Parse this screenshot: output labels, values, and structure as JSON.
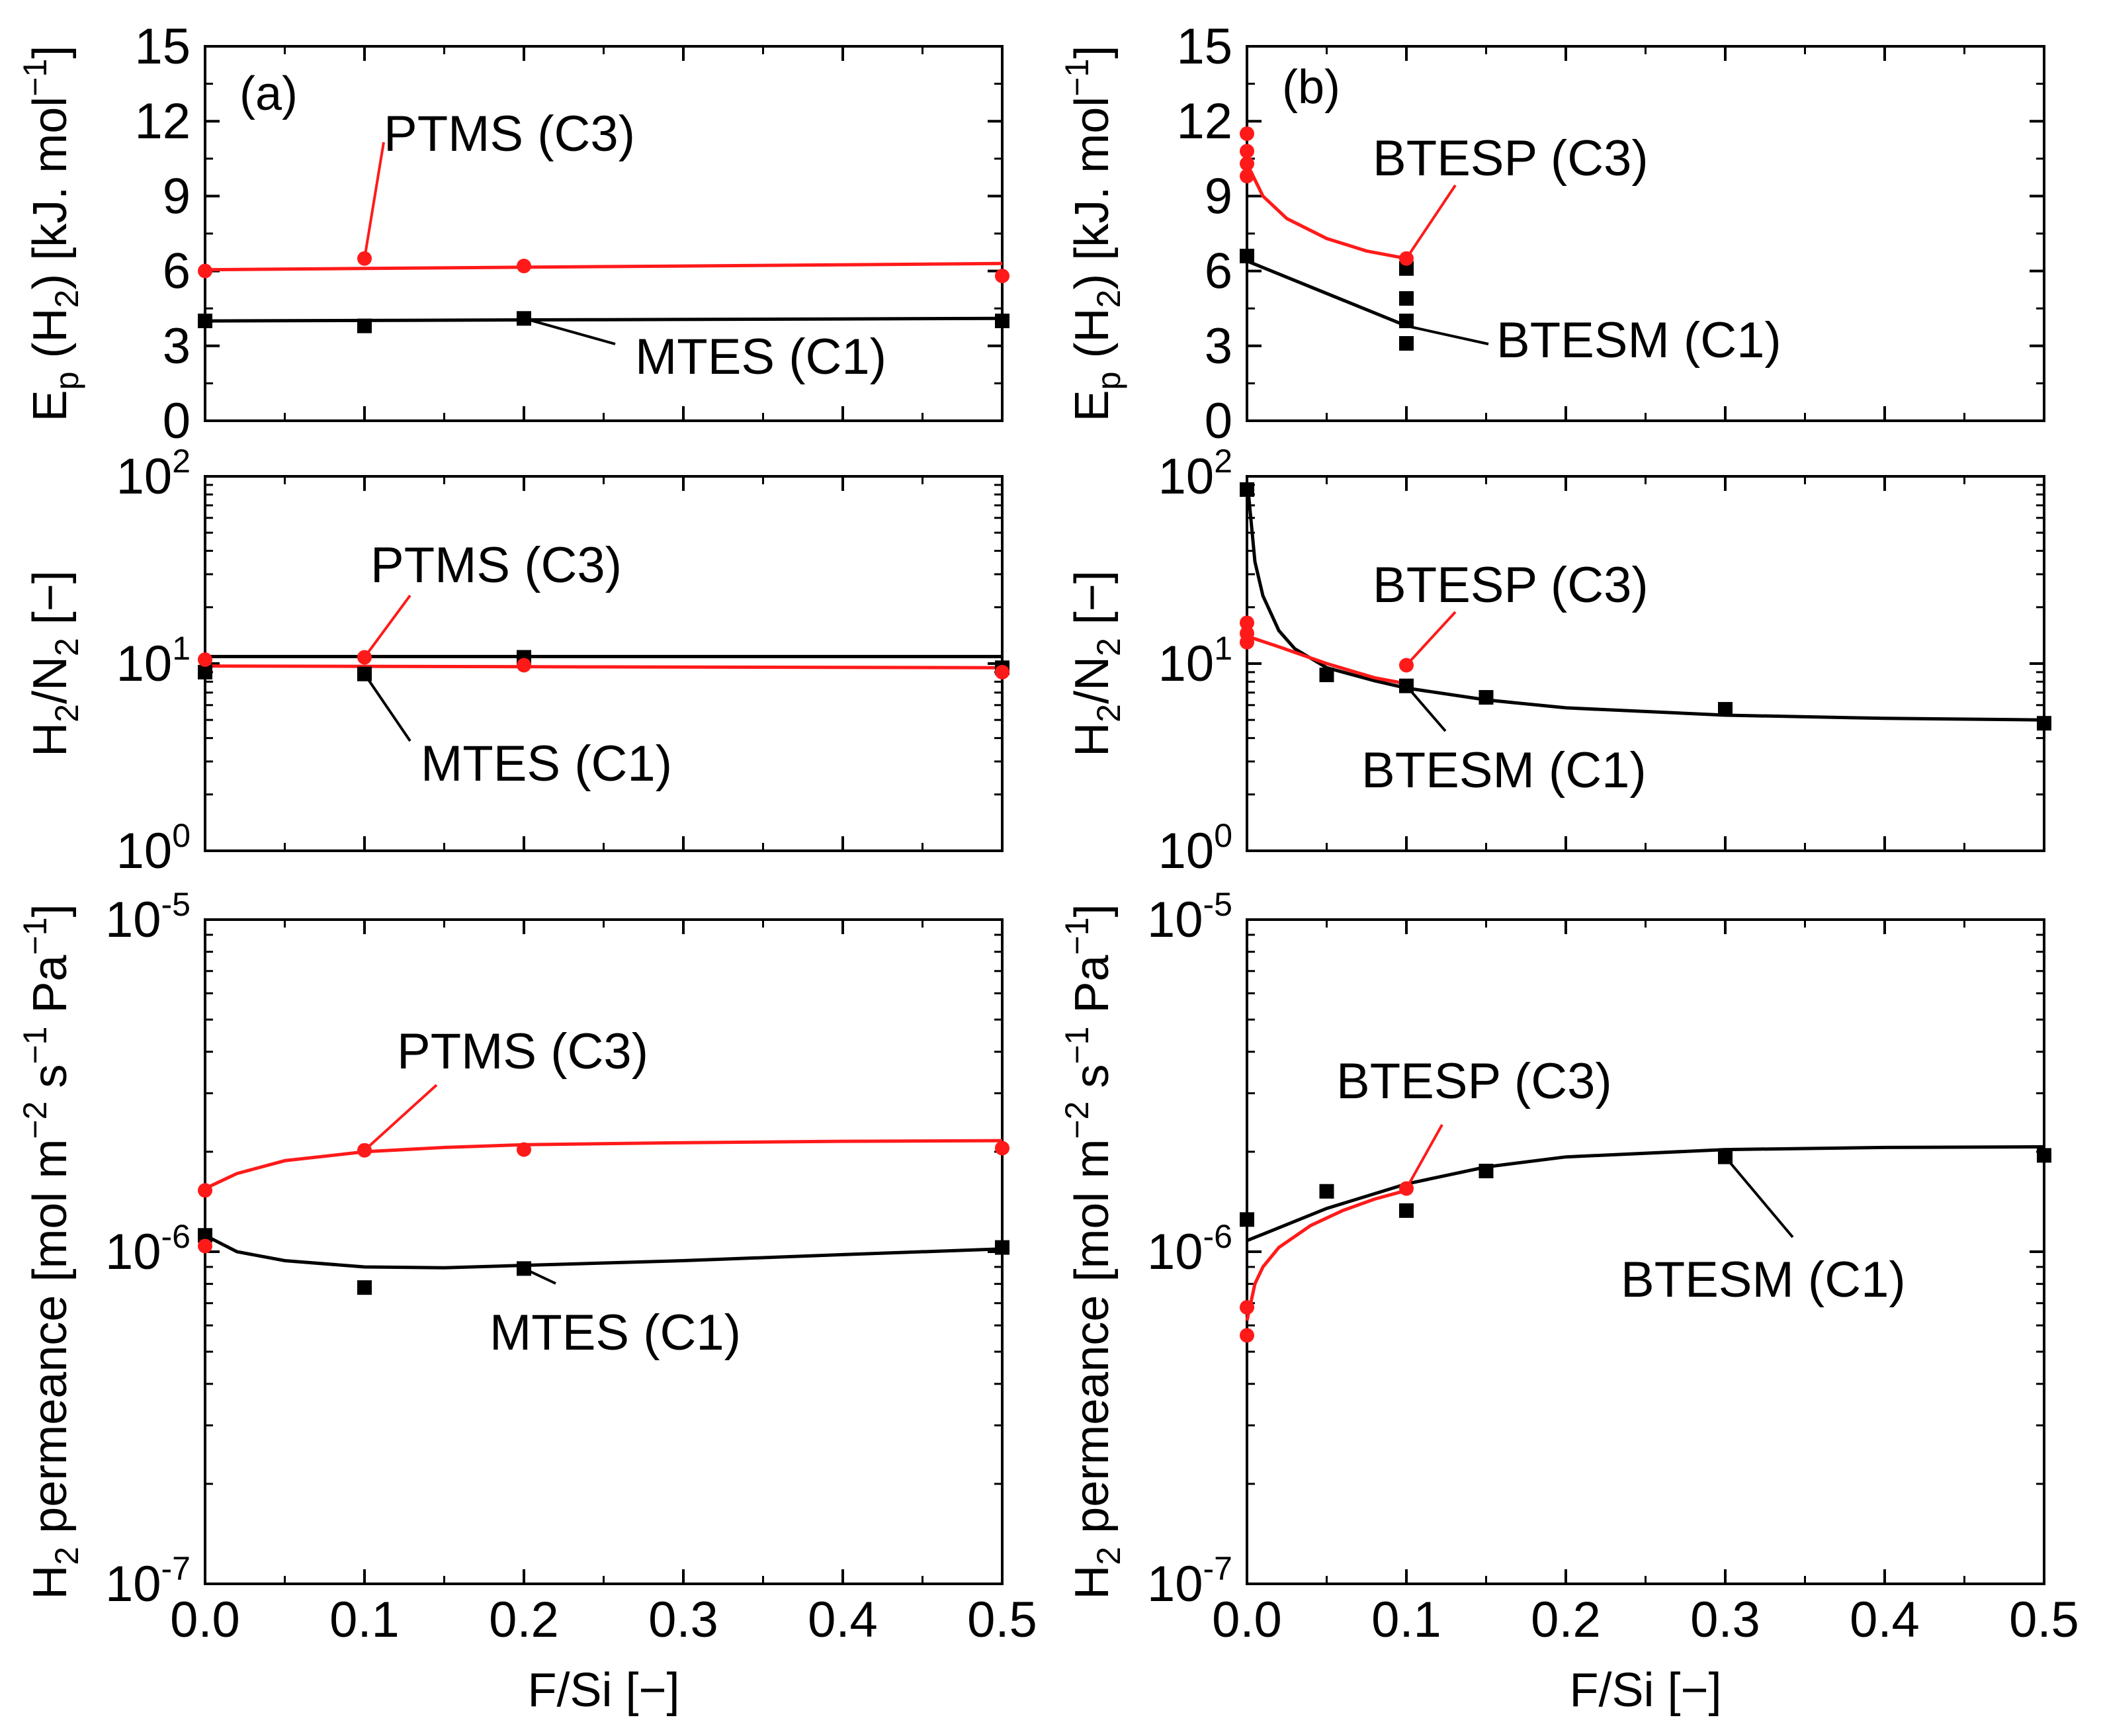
{
  "figure_label_a": "(a)",
  "figure_label_b": "(b)",
  "xlabel": "F/Si [−]",
  "ylabels": {
    "ep": "E_p (H_2) [kJ. mol^−1]",
    "sel": "H_2/N_2 [−]",
    "perm": "H_2 permeance [mol m^−2 s^−1 Pa^−1]"
  },
  "colors": {
    "red": "#ff1a1a",
    "black": "#000000"
  },
  "chart_data": [
    {
      "id": "a_ep",
      "type": "scatter",
      "panel": "(a)",
      "xlabel": "",
      "ylabel": "E_p (H_2) [kJ. mol^−1]",
      "xlim": [
        0,
        0.5
      ],
      "ylim": [
        0,
        15
      ],
      "yscale": "linear",
      "yticks": [
        0,
        3,
        6,
        9,
        12,
        15
      ],
      "yticklabels": [
        "0",
        "3",
        "6",
        "9",
        "12",
        "15"
      ],
      "xticks": [
        0,
        0.1,
        0.2,
        0.3,
        0.4,
        0.5
      ],
      "xticklabels": [],
      "series": [
        {
          "name": "PTMS (C3)",
          "color": "red",
          "marker": "circle",
          "points": [
            [
              0,
              6.0
            ],
            [
              0.1,
              6.5
            ],
            [
              0.2,
              6.2
            ],
            [
              0.5,
              5.8
            ]
          ],
          "fit": [
            [
              0,
              6.05
            ],
            [
              0.1,
              6.1
            ],
            [
              0.2,
              6.15
            ],
            [
              0.3,
              6.2
            ],
            [
              0.4,
              6.25
            ],
            [
              0.5,
              6.3
            ]
          ]
        },
        {
          "name": "MTES (C1)",
          "color": "black",
          "marker": "square",
          "points": [
            [
              0,
              4.0
            ],
            [
              0.1,
              3.8
            ],
            [
              0.2,
              4.1
            ],
            [
              0.5,
              4.0
            ]
          ],
          "fit": [
            [
              0,
              4.0
            ],
            [
              0.25,
              4.05
            ],
            [
              0.5,
              4.1
            ]
          ]
        }
      ],
      "annotations": [
        {
          "text": "PTMS (C3)",
          "series": 0,
          "at": [
            0.1,
            6.5
          ]
        },
        {
          "text": "MTES (C1)",
          "series": 1,
          "at": [
            0.2,
            4.1
          ]
        }
      ]
    },
    {
      "id": "b_ep",
      "type": "scatter",
      "panel": "(b)",
      "xlabel": "",
      "ylabel": "E_p (H_2) [kJ. mol^−1]",
      "xlim": [
        0,
        0.5
      ],
      "ylim": [
        0,
        15
      ],
      "yscale": "linear",
      "yticks": [
        0,
        3,
        6,
        9,
        12,
        15
      ],
      "yticklabels": [
        "0",
        "3",
        "6",
        "9",
        "12",
        "15"
      ],
      "xticks": [
        0,
        0.1,
        0.2,
        0.3,
        0.4,
        0.5
      ],
      "xticklabels": [],
      "series": [
        {
          "name": "BTESP (C3)",
          "color": "red",
          "marker": "circle",
          "points": [
            [
              0,
              11.5
            ],
            [
              0,
              10.8
            ],
            [
              0,
              10.3
            ],
            [
              0,
              9.8
            ],
            [
              0.1,
              6.5
            ]
          ],
          "fit": [
            [
              0,
              10.3
            ],
            [
              0.01,
              9.0
            ],
            [
              0.025,
              8.1
            ],
            [
              0.05,
              7.3
            ],
            [
              0.075,
              6.8
            ],
            [
              0.1,
              6.5
            ]
          ]
        },
        {
          "name": "BTESM (C1)",
          "color": "black",
          "marker": "square",
          "points": [
            [
              0,
              6.6
            ],
            [
              0.1,
              6.1
            ],
            [
              0.1,
              4.9
            ],
            [
              0.1,
              4.0
            ],
            [
              0.1,
              3.1
            ]
          ],
          "fit": [
            [
              0,
              6.4
            ],
            [
              0.1,
              3.8
            ]
          ]
        }
      ],
      "annotations": [
        {
          "text": "BTESP (C3)",
          "series": 0,
          "at": [
            0.1,
            6.5
          ]
        },
        {
          "text": "BTESM (C1)",
          "series": 1,
          "at": [
            0.1,
            3.8
          ]
        }
      ]
    },
    {
      "id": "a_sel",
      "type": "scatter",
      "panel": "(a)",
      "xlabel": "",
      "ylabel": "H_2/N_2 [−]",
      "xlim": [
        0,
        0.5
      ],
      "ylim": [
        1,
        100
      ],
      "yscale": "log",
      "yticks": [
        1,
        10,
        100
      ],
      "yticklabels": [
        "10^0",
        "10^1",
        "10^2"
      ],
      "xticks": [
        0,
        0.1,
        0.2,
        0.3,
        0.4,
        0.5
      ],
      "xticklabels": [],
      "series": [
        {
          "name": "PTMS (C3)",
          "color": "red",
          "marker": "circle",
          "points": [
            [
              0,
              10.5
            ],
            [
              0.1,
              10.8
            ],
            [
              0.2,
              9.8
            ],
            [
              0.5,
              9.0
            ]
          ],
          "fit": [
            [
              0,
              9.7
            ],
            [
              0.25,
              9.6
            ],
            [
              0.5,
              9.5
            ]
          ]
        },
        {
          "name": "MTES (C1)",
          "color": "black",
          "marker": "square",
          "points": [
            [
              0,
              9.0
            ],
            [
              0.1,
              8.8
            ],
            [
              0.2,
              10.8
            ],
            [
              0.5,
              9.5
            ]
          ],
          "fit": [
            [
              0,
              10.9
            ],
            [
              0.25,
              10.9
            ],
            [
              0.5,
              10.9
            ]
          ]
        }
      ],
      "annotations": [
        {
          "text": "PTMS (C3)",
          "series": 0,
          "at": [
            0.1,
            10.8
          ]
        },
        {
          "text": "MTES (C1)",
          "series": 1,
          "at": [
            0.1,
            8.8
          ]
        }
      ]
    },
    {
      "id": "b_sel",
      "type": "scatter",
      "panel": "(b)",
      "xlabel": "",
      "ylabel": "H_2/N_2 [−]",
      "xlim": [
        0,
        0.5
      ],
      "ylim": [
        1,
        100
      ],
      "yscale": "log",
      "yticks": [
        1,
        10,
        100
      ],
      "yticklabels": [
        "10^0",
        "10^1",
        "10^2"
      ],
      "xticks": [
        0,
        0.1,
        0.2,
        0.3,
        0.4,
        0.5
      ],
      "xticklabels": [],
      "series": [
        {
          "name": "BTESP (C3)",
          "color": "red",
          "marker": "circle",
          "points": [
            [
              0,
              16.5
            ],
            [
              0,
              14.5
            ],
            [
              0,
              13.0
            ],
            [
              0.1,
              9.8
            ]
          ],
          "fit": [
            [
              0,
              14.0
            ],
            [
              0.02,
              12.3
            ],
            [
              0.05,
              10.0
            ],
            [
              0.08,
              8.4
            ],
            [
              0.1,
              7.8
            ]
          ]
        },
        {
          "name": "BTESM (C1)",
          "color": "black",
          "marker": "square",
          "points": [
            [
              0,
              85
            ],
            [
              0.05,
              8.7
            ],
            [
              0.1,
              7.6
            ],
            [
              0.15,
              6.6
            ],
            [
              0.3,
              5.7
            ],
            [
              0.5,
              4.8
            ]
          ],
          "fit": [
            [
              0.001,
              80
            ],
            [
              0.005,
              35
            ],
            [
              0.01,
              23
            ],
            [
              0.02,
              15
            ],
            [
              0.03,
              12
            ],
            [
              0.05,
              9.5
            ],
            [
              0.08,
              8.1
            ],
            [
              0.1,
              7.4
            ],
            [
              0.15,
              6.4
            ],
            [
              0.2,
              5.8
            ],
            [
              0.3,
              5.3
            ],
            [
              0.4,
              5.1
            ],
            [
              0.5,
              5.0
            ]
          ]
        }
      ],
      "annotations": [
        {
          "text": "BTESP (C3)",
          "series": 0,
          "at": [
            0.1,
            9.8
          ]
        },
        {
          "text": "BTESM (C1)",
          "series": 1,
          "at": [
            0.1,
            7.6
          ]
        }
      ]
    },
    {
      "id": "a_perm",
      "type": "scatter",
      "panel": "(a)",
      "xlabel": "F/Si [−]",
      "ylabel": "H_2 permeance [mol m^−2 s^−1 Pa^−1]",
      "xlim": [
        0,
        0.5
      ],
      "ylim": [
        1e-07,
        1e-05
      ],
      "yscale": "log",
      "yticks": [
        1e-07,
        1e-06,
        1e-05
      ],
      "yticklabels": [
        "10^-7",
        "10^-6",
        "10^-5"
      ],
      "xticks": [
        0,
        0.1,
        0.2,
        0.3,
        0.4,
        0.5
      ],
      "xticklabels": [
        "0.0",
        "0.1",
        "0.2",
        "0.3",
        "0.4",
        "0.5"
      ],
      "series": [
        {
          "name": "PTMS (C3)",
          "color": "red",
          "marker": "circle",
          "points": [
            [
              0,
              1.53e-06
            ],
            [
              0,
              1.04e-06
            ],
            [
              0.1,
              2.02e-06
            ],
            [
              0.2,
              2.03e-06
            ],
            [
              0.5,
              2.05e-06
            ]
          ],
          "fit": [
            [
              0,
              1.55e-06
            ],
            [
              0.02,
              1.72e-06
            ],
            [
              0.05,
              1.88e-06
            ],
            [
              0.1,
              2e-06
            ],
            [
              0.15,
              2.06e-06
            ],
            [
              0.2,
              2.1e-06
            ],
            [
              0.3,
              2.13e-06
            ],
            [
              0.4,
              2.15e-06
            ],
            [
              0.5,
              2.16e-06
            ]
          ]
        },
        {
          "name": "MTES (C1)",
          "color": "black",
          "marker": "square",
          "points": [
            [
              0,
              1.12e-06
            ],
            [
              0.1,
              7.8e-07
            ],
            [
              0.2,
              8.9e-07
            ],
            [
              0.5,
              1.03e-06
            ]
          ],
          "fit": [
            [
              0,
              1.12e-06
            ],
            [
              0.02,
              1e-06
            ],
            [
              0.05,
              9.4e-07
            ],
            [
              0.1,
              9e-07
            ],
            [
              0.15,
              8.95e-07
            ],
            [
              0.2,
              9.1e-07
            ],
            [
              0.3,
              9.4e-07
            ],
            [
              0.4,
              9.8e-07
            ],
            [
              0.5,
              1.02e-06
            ]
          ]
        }
      ],
      "annotations": [
        {
          "text": "PTMS (C3)",
          "series": 0,
          "at": [
            0.1,
            2.02e-06
          ]
        },
        {
          "text": "MTES (C1)",
          "series": 1,
          "at": [
            0.2,
            8.9e-07
          ]
        }
      ]
    },
    {
      "id": "b_perm",
      "type": "scatter",
      "panel": "(b)",
      "xlabel": "F/Si [−]",
      "ylabel": "H_2 permeance [mol m^−2 s^−1 Pa^−1]",
      "xlim": [
        0,
        0.5
      ],
      "ylim": [
        1e-07,
        1e-05
      ],
      "yscale": "log",
      "yticks": [
        1e-07,
        1e-06,
        1e-05
      ],
      "yticklabels": [
        "10^-7",
        "10^-6",
        "10^-5"
      ],
      "xticks": [
        0,
        0.1,
        0.2,
        0.3,
        0.4,
        0.5
      ],
      "xticklabels": [
        "0.0",
        "0.1",
        "0.2",
        "0.3",
        "0.4",
        "0.5"
      ],
      "series": [
        {
          "name": "BTESP (C3)",
          "color": "red",
          "marker": "circle",
          "points": [
            [
              0,
              6.8e-07
            ],
            [
              0,
              5.6e-07
            ],
            [
              0.1,
              1.55e-06
            ]
          ],
          "fit": [
            [
              0,
              6.2e-07
            ],
            [
              0.005,
              8e-07
            ],
            [
              0.01,
              9e-07
            ],
            [
              0.02,
              1.03e-06
            ],
            [
              0.04,
              1.2e-06
            ],
            [
              0.06,
              1.33e-06
            ],
            [
              0.08,
              1.44e-06
            ],
            [
              0.1,
              1.53e-06
            ]
          ]
        },
        {
          "name": "BTESM (C1)",
          "color": "black",
          "marker": "square",
          "points": [
            [
              0,
              1.25e-06
            ],
            [
              0.05,
              1.52e-06
            ],
            [
              0.1,
              1.33e-06
            ],
            [
              0.15,
              1.75e-06
            ],
            [
              0.3,
              1.93e-06
            ],
            [
              0.5,
              1.95e-06
            ]
          ],
          "fit": [
            [
              0,
              1.08e-06
            ],
            [
              0.05,
              1.35e-06
            ],
            [
              0.1,
              1.6e-06
            ],
            [
              0.15,
              1.8e-06
            ],
            [
              0.2,
              1.93e-06
            ],
            [
              0.3,
              2.03e-06
            ],
            [
              0.4,
              2.06e-06
            ],
            [
              0.5,
              2.07e-06
            ]
          ]
        }
      ],
      "annotations": [
        {
          "text": "BTESP (C3)",
          "series": 0,
          "at": [
            0.1,
            1.55e-06
          ]
        },
        {
          "text": "BTESM (C1)",
          "series": 1,
          "at": [
            0.3,
            1.93e-06
          ]
        }
      ]
    }
  ]
}
